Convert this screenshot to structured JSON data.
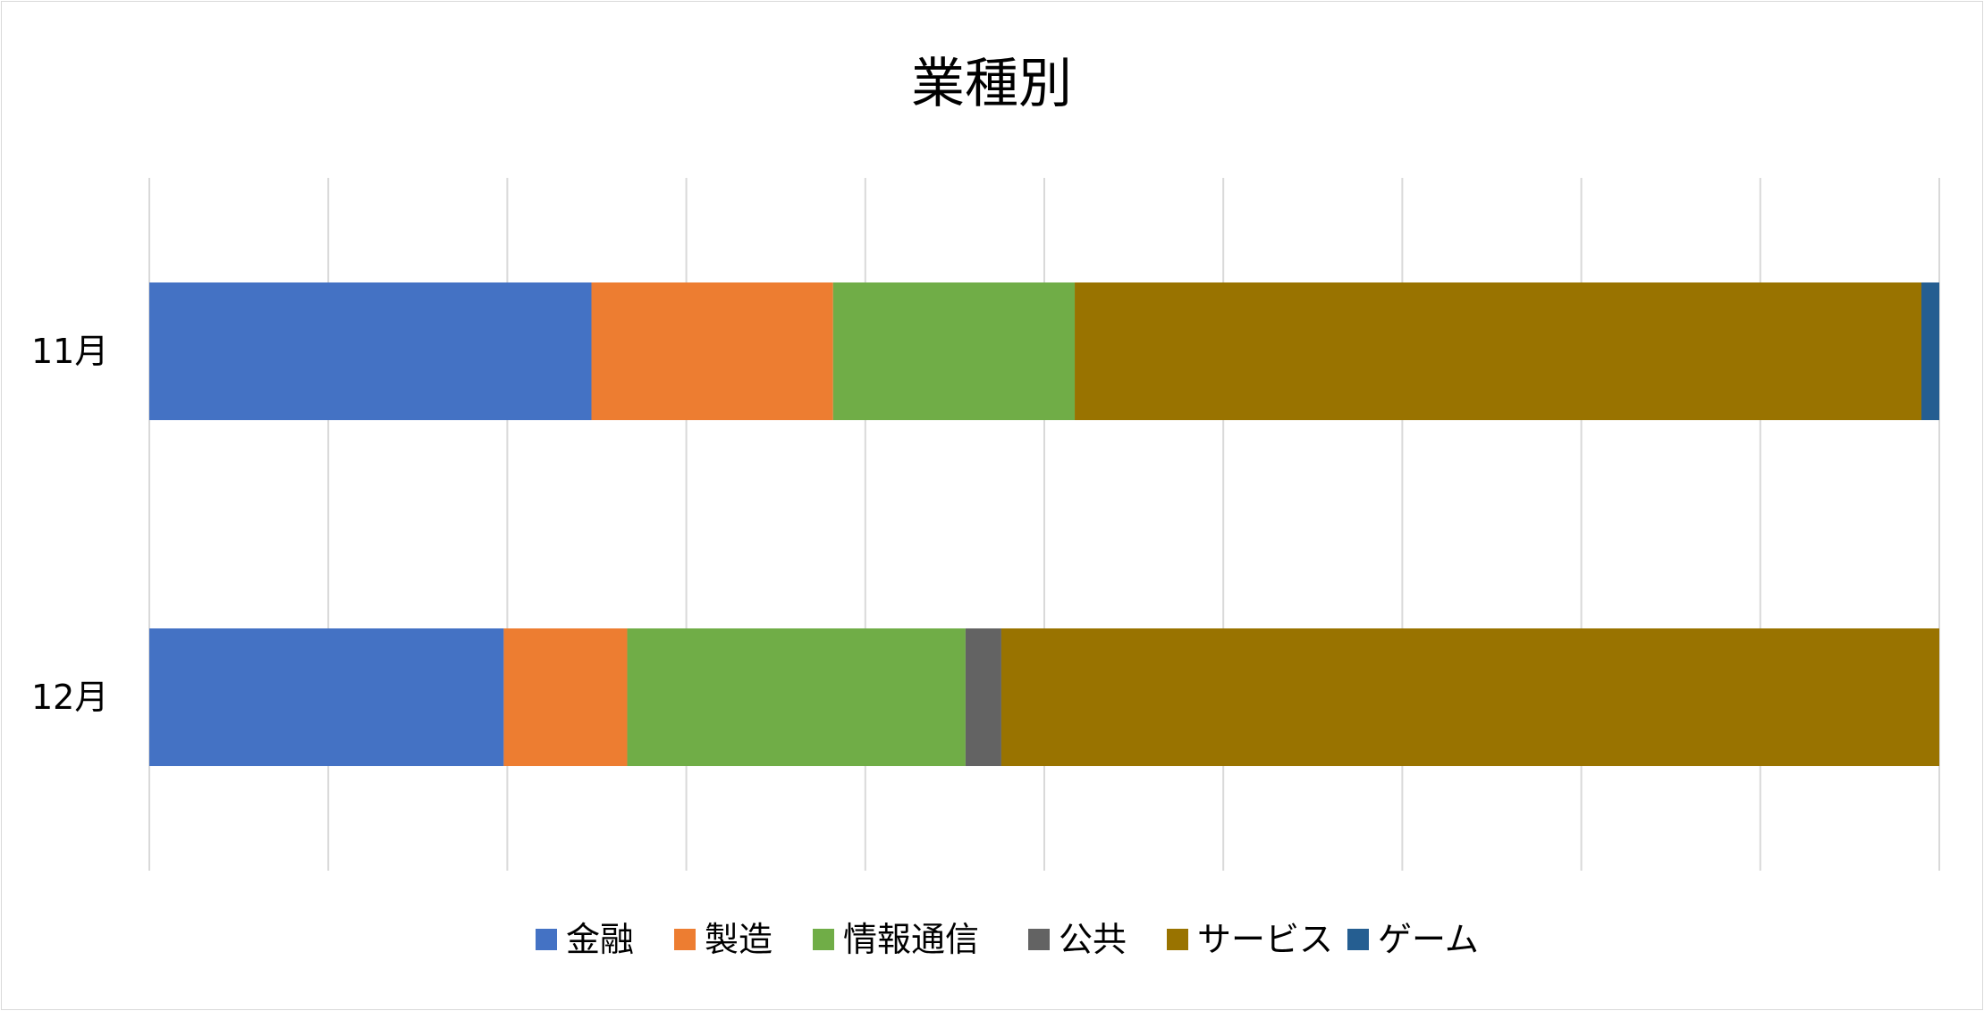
{
  "chart_data": {
    "type": "bar",
    "orientation": "horizontal",
    "stacked": "100%",
    "title": "業種別",
    "categories": [
      "11月",
      "12月"
    ],
    "series": [
      {
        "name": "金融",
        "color": "#4472c4",
        "values": [
          24.7,
          19.8
        ]
      },
      {
        "name": "製造",
        "color": "#ed7d31",
        "values": [
          13.5,
          6.9
        ]
      },
      {
        "name": "情報通信",
        "color": "#70ad47",
        "values": [
          13.5,
          18.9
        ]
      },
      {
        "name": "公共",
        "color": "#636363",
        "values": [
          0,
          2.0
        ]
      },
      {
        "name": "サービス",
        "color": "#997300",
        "values": [
          47.3,
          52.4
        ]
      },
      {
        "name": "ゲーム",
        "color": "#255e91",
        "values": [
          1.0,
          0
        ]
      }
    ],
    "xlim": [
      0,
      100
    ],
    "x_gridlines": 11,
    "x_tick_labels_shown": false,
    "grid": true,
    "legend": "bottom"
  }
}
